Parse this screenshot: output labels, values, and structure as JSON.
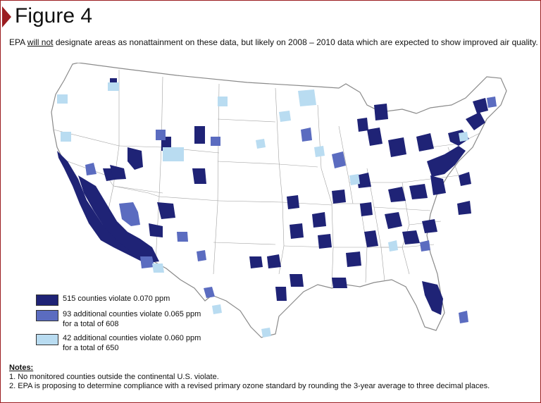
{
  "figure": {
    "title": "Figure 4",
    "subtitle_pre": "EPA ",
    "subtitle_emph": "will not",
    "subtitle_post": " designate areas as nonattainment on these data, but likely on 2008 – 2010 data which are expected to show improved air quality."
  },
  "colors": {
    "violate_070": "#1f2376",
    "violate_065": "#5b6cc0",
    "violate_060": "#b9dcf1",
    "state_fill": "#ffffff",
    "state_border": "#9a9a9a",
    "accent": "#9b1c20"
  },
  "legend": {
    "items": [
      {
        "line1": "515 counties violate 0.070 ppm",
        "line2": ""
      },
      {
        "line1": "93 additional counties violate 0.065 ppm",
        "line2": "for a total of 608"
      },
      {
        "line1": "42 additional counties violate 0.060 ppm",
        "line2": "for a total of 650"
      }
    ]
  },
  "notes": {
    "title": "Notes:",
    "items": [
      "1. No monitored counties outside the continental U.S. violate.",
      "2. EPA is proposing to determine compliance with a revised primary ozone standard by rounding the 3-year average to three decimal places."
    ]
  }
}
